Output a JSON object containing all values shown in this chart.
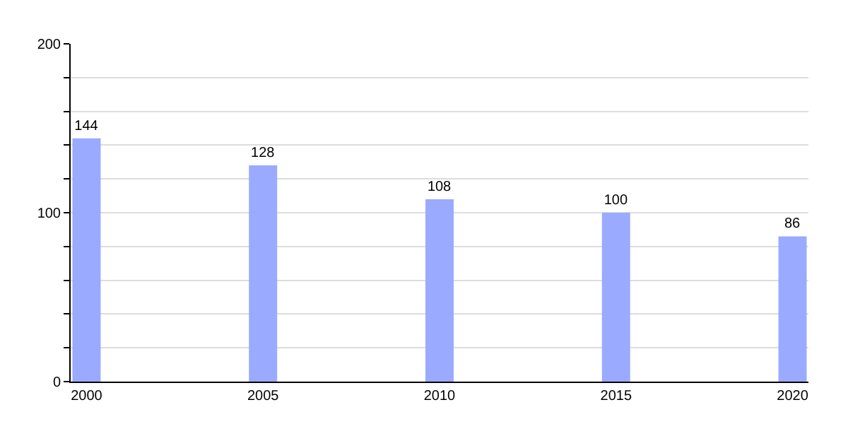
{
  "chart_data": {
    "type": "bar",
    "categories": [
      "2000",
      "2005",
      "2010",
      "2015",
      "2020"
    ],
    "values": [
      144,
      128,
      108,
      100,
      86
    ],
    "color": "#99aaff",
    "data_labels": true,
    "ylim": [
      0,
      200
    ],
    "yticks": [
      0,
      {
        "value": 20,
        "label": null
      },
      {
        "value": 40,
        "label": null
      },
      {
        "value": 60,
        "label": null
      },
      {
        "value": 80,
        "label": null
      },
      100,
      {
        "value": 120,
        "label": null
      },
      {
        "value": 140,
        "label": null
      },
      {
        "value": 160,
        "label": null
      },
      {
        "value": 180,
        "label": null
      },
      200
    ],
    "grid": true
  }
}
